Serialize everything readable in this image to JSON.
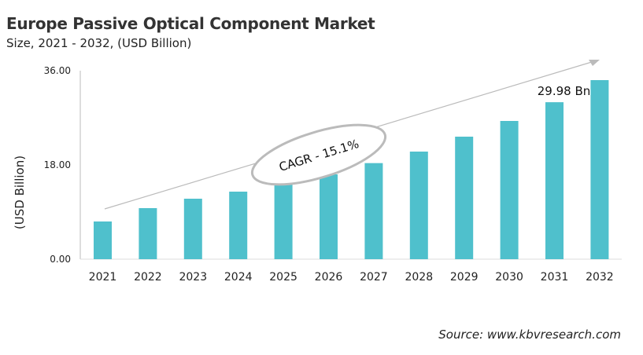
{
  "title": "Europe Passive Optical Component Market",
  "subtitle": "Size, 2021 - 2032, (USD Billion)",
  "source": "Source: www.kbvresearch.com",
  "chart_data": {
    "type": "bar",
    "title": "Europe Passive Optical Component Market",
    "ylabel": "(USD Billion)",
    "xlabel": "",
    "categories": [
      "2021",
      "2022",
      "2023",
      "2024",
      "2025",
      "2026",
      "2027",
      "2028",
      "2029",
      "2030",
      "2031",
      "2032"
    ],
    "values": [
      7.2,
      9.75,
      11.55,
      12.9,
      14.4,
      16.2,
      18.35,
      20.55,
      23.4,
      26.4,
      29.98,
      34.2
    ],
    "ylim": [
      0,
      36
    ],
    "yticks": [
      "0.00",
      "18.00",
      "36.00"
    ],
    "grid": false,
    "annotations": {
      "value_label": "29.98 Bn",
      "value_label_category": "2031",
      "cagr": "CAGR - 15.1%"
    },
    "bar_color": "#4fc0cc"
  }
}
